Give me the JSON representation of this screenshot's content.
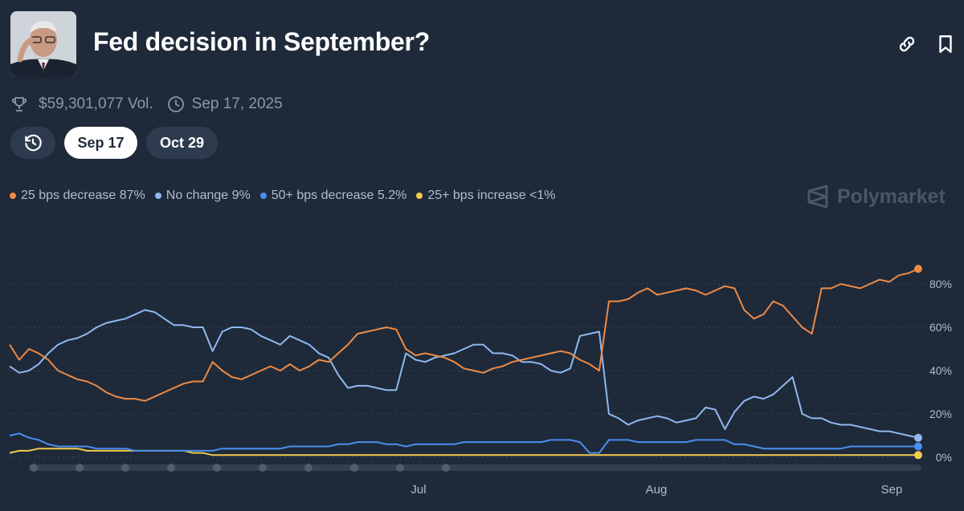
{
  "header": {
    "title": "Fed decision in September?",
    "avatar_icon": "portrait-photo",
    "link_icon": "link-icon",
    "bookmark_icon": "bookmark-icon"
  },
  "meta": {
    "volume": "$59,301,077 Vol.",
    "end_date": "Sep 17, 2025"
  },
  "date_tabs": [
    {
      "label": "Sep 17",
      "active": true
    },
    {
      "label": "Oct 29",
      "active": false
    }
  ],
  "legend": [
    {
      "label": "25 bps decrease 87%",
      "color": "#f08a43"
    },
    {
      "label": "No change 9%",
      "color": "#8fb8ee"
    },
    {
      "label": "50+ bps decrease 5.2%",
      "color": "#4a8ef0"
    },
    {
      "label": "25+ bps increase <1%",
      "color": "#f2c94c"
    }
  ],
  "brand": "Polymarket",
  "chart_data": {
    "type": "line",
    "x_ticks": [
      "Jul",
      "Aug",
      "Sep"
    ],
    "y_ticks": [
      "0%",
      "20%",
      "40%",
      "60%",
      "80%"
    ],
    "ylim": [
      0,
      100
    ],
    "grid": true,
    "series": [
      {
        "name": "25 bps decrease",
        "color": "#f08a43",
        "values": [
          52,
          45,
          50,
          48,
          45,
          40,
          38,
          36,
          35,
          33,
          30,
          28,
          27,
          27,
          26,
          28,
          30,
          32,
          34,
          35,
          35,
          44,
          40,
          37,
          36,
          38,
          40,
          42,
          40,
          43,
          40,
          42,
          45,
          44,
          48,
          52,
          57,
          58,
          59,
          60,
          59,
          50,
          47,
          48,
          47,
          46,
          44,
          41,
          40,
          39,
          41,
          42,
          44,
          45,
          46,
          47,
          48,
          49,
          48,
          45,
          43,
          40,
          72,
          72,
          73,
          76,
          78,
          75,
          76,
          77,
          78,
          77,
          75,
          77,
          79,
          78,
          68,
          64,
          66,
          72,
          70,
          65,
          60,
          57,
          78,
          78,
          80,
          79,
          78,
          80,
          82,
          81,
          84,
          85,
          87
        ]
      },
      {
        "name": "No change",
        "color": "#8fb8ee",
        "values": [
          42,
          39,
          40,
          43,
          48,
          52,
          54,
          55,
          57,
          60,
          62,
          63,
          64,
          66,
          68,
          67,
          64,
          61,
          61,
          60,
          60,
          49,
          58,
          60,
          60,
          59,
          56,
          54,
          52,
          56,
          54,
          52,
          48,
          46,
          38,
          32,
          33,
          33,
          32,
          31,
          31,
          48,
          45,
          44,
          46,
          47,
          48,
          50,
          52,
          52,
          48,
          48,
          47,
          44,
          44,
          43,
          40,
          39,
          41,
          56,
          57,
          58,
          20,
          18,
          15,
          17,
          18,
          19,
          18,
          16,
          17,
          18,
          23,
          22,
          13,
          21,
          26,
          28,
          27,
          29,
          33,
          37,
          20,
          18,
          18,
          16,
          15,
          15,
          14,
          13,
          12,
          12,
          11,
          10,
          9
        ]
      },
      {
        "name": "50+ bps decrease",
        "color": "#4a8ef0",
        "values": [
          10,
          11,
          9,
          8,
          6,
          5,
          5,
          5,
          5,
          4,
          4,
          4,
          4,
          3,
          3,
          3,
          3,
          3,
          3,
          3,
          3,
          3,
          4,
          4,
          4,
          4,
          4,
          4,
          4,
          5,
          5,
          5,
          5,
          5,
          6,
          6,
          7,
          7,
          7,
          6,
          6,
          5,
          6,
          6,
          6,
          6,
          6,
          7,
          7,
          7,
          7,
          7,
          7,
          7,
          7,
          7,
          8,
          8,
          8,
          7,
          2,
          2,
          8,
          8,
          8,
          7,
          7,
          7,
          7,
          7,
          7,
          8,
          8,
          8,
          8,
          6,
          6,
          5,
          4,
          4,
          4,
          4,
          4,
          4,
          4,
          4,
          4,
          5,
          5,
          5,
          5,
          5,
          5,
          5,
          5
        ]
      },
      {
        "name": "25+ bps increase",
        "color": "#f2c94c",
        "values": [
          2,
          3,
          3,
          4,
          4,
          4,
          4,
          4,
          3,
          3,
          3,
          3,
          3,
          3,
          3,
          3,
          3,
          3,
          3,
          2,
          2,
          1,
          1,
          1,
          1,
          1,
          1,
          1,
          1,
          1,
          1,
          1,
          1,
          1,
          1,
          1,
          1,
          1,
          1,
          1,
          1,
          1,
          1,
          1,
          1,
          1,
          1,
          1,
          1,
          1,
          1,
          1,
          1,
          1,
          1,
          1,
          1,
          1,
          1,
          1,
          1,
          1,
          1,
          1,
          1,
          1,
          1,
          1,
          1,
          1,
          1,
          1,
          1,
          1,
          1,
          1,
          1,
          1,
          1,
          1,
          1,
          1,
          1,
          1,
          1,
          1,
          1,
          1,
          1,
          1,
          1,
          1,
          1,
          1,
          1
        ]
      }
    ],
    "timeline_markers": 10
  }
}
